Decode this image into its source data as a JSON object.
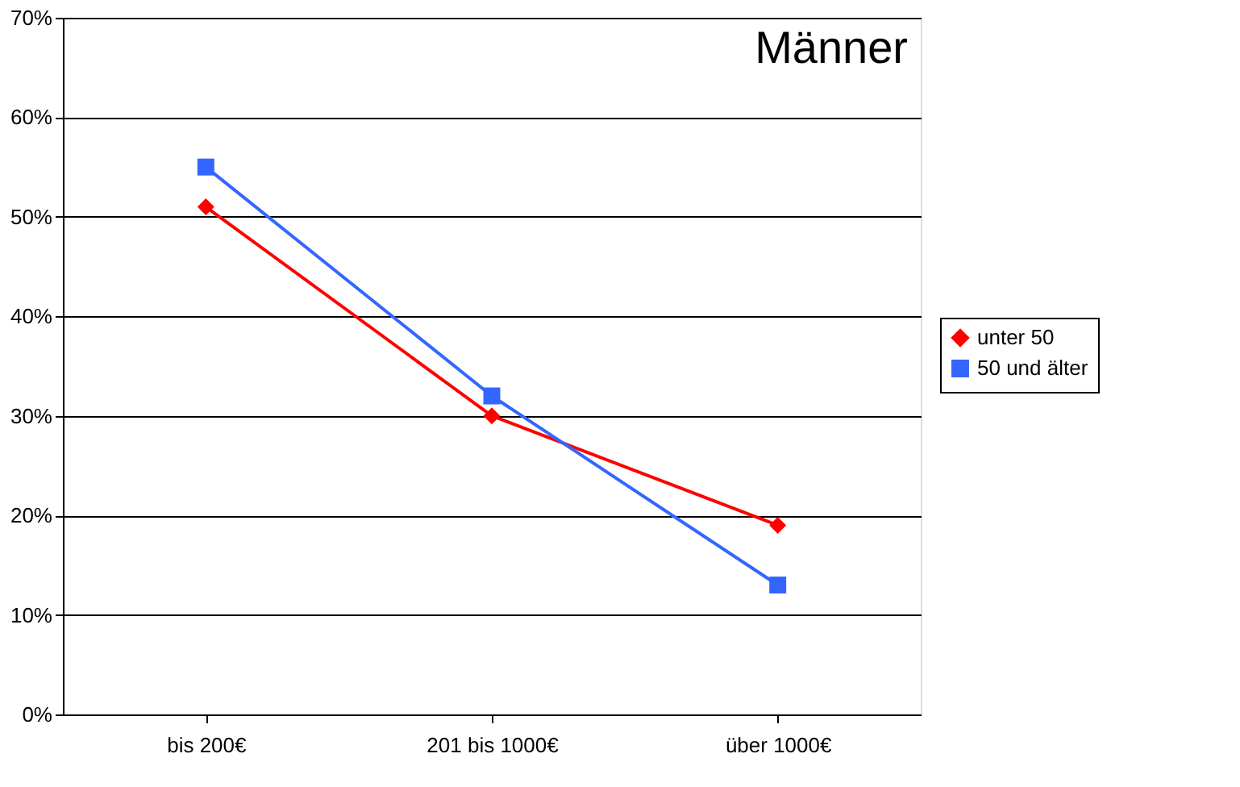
{
  "chart_data": {
    "type": "line",
    "annotations": [
      "Männer"
    ],
    "categories": [
      "bis 200€",
      "201 bis 1000€",
      "über 1000€"
    ],
    "series": [
      {
        "name": "unter 50",
        "color": "#ff0000",
        "marker": "diamond",
        "values": [
          51,
          30,
          19
        ]
      },
      {
        "name": "50 und älter",
        "color": "#3366ff",
        "marker": "square",
        "values": [
          55,
          32,
          13
        ]
      }
    ],
    "ylim": [
      0,
      70
    ],
    "yticks": [
      {
        "value": 0,
        "label": "0%"
      },
      {
        "value": 10,
        "label": "10%"
      },
      {
        "value": 20,
        "label": "20%"
      },
      {
        "value": 30,
        "label": "30%"
      },
      {
        "value": 40,
        "label": "40%"
      },
      {
        "value": 50,
        "label": "50%"
      },
      {
        "value": 60,
        "label": "60%"
      },
      {
        "value": 70,
        "label": "70%"
      }
    ],
    "grid": "y",
    "legend": "right",
    "line_style": "solid"
  }
}
